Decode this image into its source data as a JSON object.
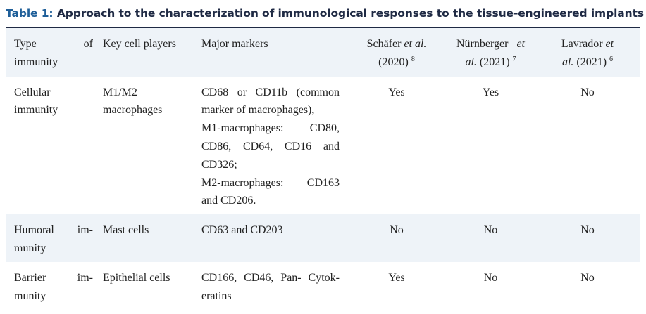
{
  "caption": {
    "label": "Table 1:",
    "title": " Approach to the characterization of immunological responses to the tissue-engineered implants"
  },
  "header": {
    "type_a": "Type",
    "type_b": "of",
    "type_c": "immunity",
    "players": "Key cell players",
    "markers": "Major markers",
    "s1_name": "Schäfer ",
    "s1_etal": "et al.",
    "s1_year": "(2020)",
    "s1_ref": "8",
    "s2_name": "Nürnberger",
    "s2_etal": "et",
    "s2_al": "al.",
    "s2_year": " (2021)",
    "s2_ref": "7",
    "s3_name": "Lavrador ",
    "s3_etal": "et",
    "s3_al": "al.",
    "s3_year": " (2021)",
    "s3_ref": "6"
  },
  "rows": [
    {
      "type_l1": "Cellular",
      "type_l2": "immunity",
      "players_l1": "M1/M2",
      "players_l2": "macrophages",
      "markers_lines": [
        "CD68 or CD11b (common",
        "marker of macrophages),",
        "M1-macrophages: CD80,",
        "CD86, CD64, CD16 and",
        "CD326;",
        "M2-macrophages: CD163",
        "and CD206."
      ],
      "s1": "Yes",
      "s2": "Yes",
      "s3": "No"
    },
    {
      "type_l1": "Humoral im-",
      "type_l2": "munity",
      "players_l1": "Mast cells",
      "markers_lines": [
        "CD63 and CD203"
      ],
      "s1": "No",
      "s2": "No",
      "s3": "No"
    },
    {
      "type_l1": "Barrier im-",
      "type_l2": "munity",
      "players_l1": "Epithelial cells",
      "markers_lines": [
        "CD166, CD46, Pan- Cytok-",
        "eratins"
      ],
      "s1": "Yes",
      "s2": "No",
      "s3": "No"
    }
  ],
  "colors": {
    "header_shade": "#eef3f8",
    "caption_label": "#1f5f99",
    "caption_text": "#1f2a44"
  }
}
